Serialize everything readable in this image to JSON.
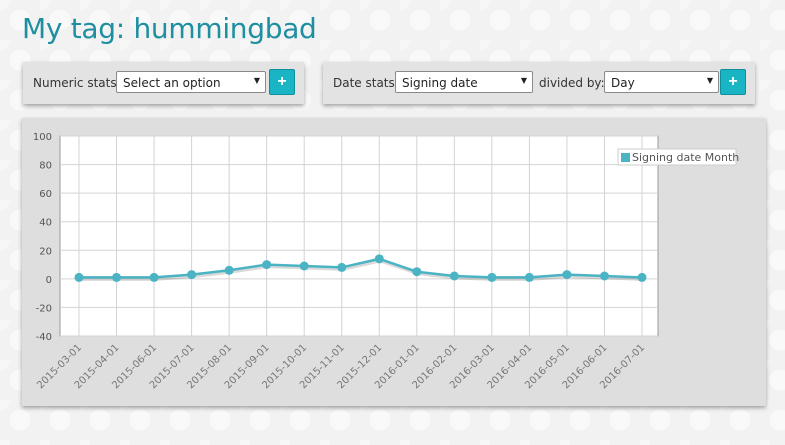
{
  "page": {
    "title": "My tag: hummingbad"
  },
  "numeric_stats": {
    "label": "Numeric stats:",
    "selected": "Select an option",
    "add_label": "+"
  },
  "date_stats": {
    "label": "Date stats:",
    "selected": "Signing date",
    "divided_label": "divided by:",
    "divided_selected": "Day",
    "add_label": "+"
  },
  "colors": {
    "accent": "#19b5c4",
    "title": "#1e8fa0",
    "series": "#4ab3c4"
  },
  "chart_data": {
    "type": "line",
    "x": [
      "2015-03-01",
      "2015-04-01",
      "2015-06-01",
      "2015-07-01",
      "2015-08-01",
      "2015-09-01",
      "2015-10-01",
      "2015-11-01",
      "2015-12-01",
      "2016-01-01",
      "2016-02-01",
      "2016-03-01",
      "2016-04-01",
      "2016-05-01",
      "2016-06-01",
      "2016-07-01"
    ],
    "series": [
      {
        "name": "Signing date Month",
        "values": [
          1,
          1,
          1,
          3,
          6,
          10,
          9,
          8,
          14,
          5,
          2,
          1,
          1,
          3,
          2,
          1
        ]
      }
    ],
    "ylim": [
      -40,
      100
    ],
    "yticks": [
      100,
      80,
      60,
      40,
      20,
      0,
      -20,
      -40
    ],
    "grid": true,
    "legend": "top-right",
    "title": "",
    "xlabel": "",
    "ylabel": ""
  }
}
